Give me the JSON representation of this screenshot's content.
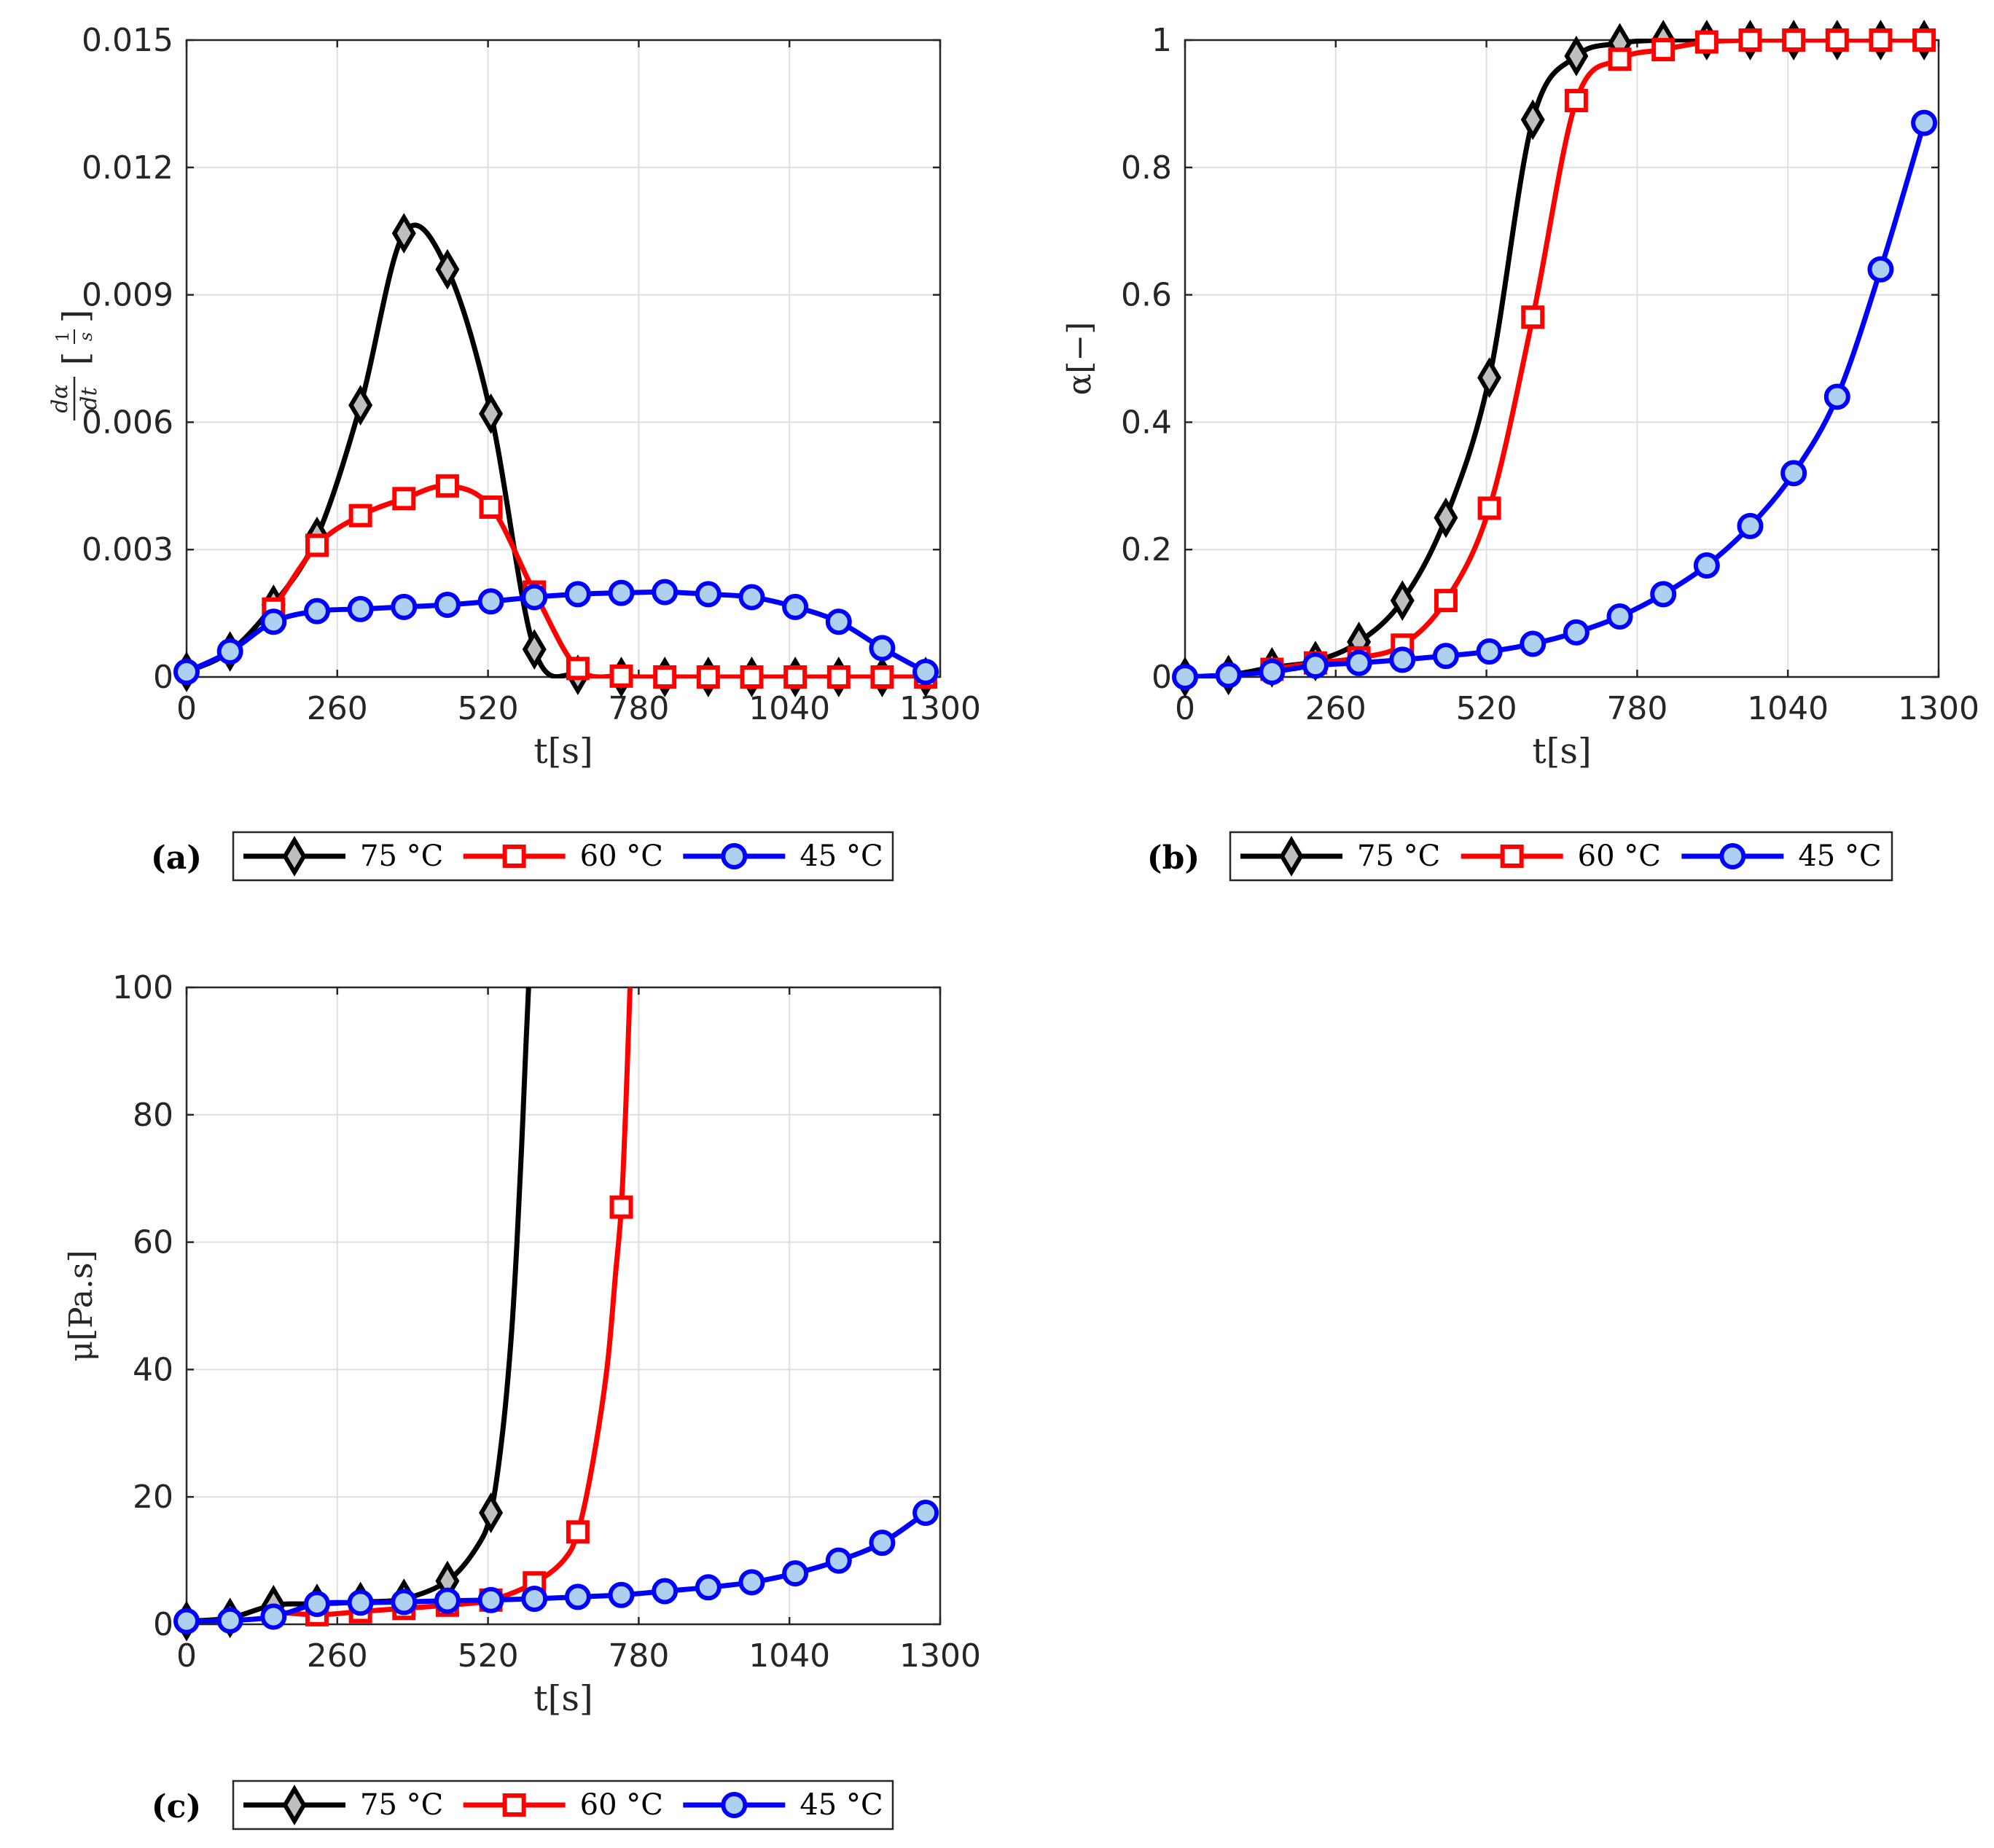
{
  "figure": {
    "legend": [
      {
        "label": "75 °C",
        "color": "#000000",
        "marker": "diamond"
      },
      {
        "label": "60 °C",
        "color": "#ff0000",
        "marker": "square"
      },
      {
        "label": "45 °C",
        "color": "#0000ff",
        "marker": "circle"
      }
    ],
    "marker_fill": "#bebebe",
    "marker_fill_circle": "#aed0f0"
  },
  "chart_data": [
    {
      "id": "a",
      "type": "line",
      "tag": "(a)",
      "xlabel": "t[s]",
      "ylabel": "dα/dt [1/s]",
      "ylabel_parts": {
        "num": "dα",
        "den": "dt",
        "bracket_num": "1",
        "bracket_den": "s"
      },
      "xlim": [
        0,
        1300
      ],
      "ylim": [
        0,
        0.015
      ],
      "xticks": [
        0,
        260,
        520,
        780,
        1040,
        1300
      ],
      "xtick_labels": [
        "0",
        "260",
        "520",
        "780",
        "1040",
        "1300"
      ],
      "yticks": [
        0,
        0.003,
        0.006,
        0.009,
        0.012,
        0.015
      ],
      "ytick_labels": [
        "0",
        "0.003",
        "0.006",
        "0.009",
        "0.012",
        "0.015"
      ],
      "series": [
        {
          "name": "75 °C",
          "x": [
            0,
            75,
            150,
            225,
            300,
            375,
            450,
            525,
            600,
            675,
            750,
            825,
            900,
            975,
            1050,
            1125,
            1200,
            1275
          ],
          "y": [
            0.00012,
            0.0006,
            0.0017,
            0.0033,
            0.0064,
            0.01045,
            0.0096,
            0.0062,
            0.00065,
            5e-05,
            0,
            0,
            0,
            0,
            0,
            0,
            0,
            0
          ]
        },
        {
          "name": "60 °C",
          "x": [
            150,
            225,
            300,
            375,
            450,
            525,
            600,
            675,
            750,
            825,
            900,
            975,
            1050,
            1125,
            1200,
            1275
          ],
          "y": [
            0.0016,
            0.0031,
            0.0038,
            0.0042,
            0.0045,
            0.004,
            0.002,
            0.0002,
            2e-05,
            0,
            0,
            0,
            0,
            0,
            0,
            0
          ]
        },
        {
          "name": "45 °C",
          "x": [
            0,
            75,
            150,
            225,
            300,
            375,
            450,
            525,
            600,
            675,
            750,
            825,
            900,
            975,
            1050,
            1125,
            1200,
            1275
          ],
          "y": [
            0.00012,
            0.0006,
            0.0013,
            0.00155,
            0.0016,
            0.00165,
            0.0017,
            0.00178,
            0.00188,
            0.00195,
            0.00198,
            0.002,
            0.00195,
            0.00188,
            0.00165,
            0.0013,
            0.00068,
            0.00012
          ]
        }
      ]
    },
    {
      "id": "b",
      "type": "line",
      "tag": "(b)",
      "xlabel": "t[s]",
      "ylabel": "α[−]",
      "xlim": [
        0,
        1300
      ],
      "ylim": [
        0,
        1
      ],
      "xticks": [
        0,
        260,
        520,
        780,
        1040,
        1300
      ],
      "xtick_labels": [
        "0",
        "260",
        "520",
        "780",
        "1040",
        "1300"
      ],
      "yticks": [
        0,
        0.2,
        0.4,
        0.6,
        0.8,
        1
      ],
      "ytick_labels": [
        "0",
        "0.2",
        "0.4",
        "0.6",
        "0.8",
        "1"
      ],
      "series": [
        {
          "name": "75 °C",
          "x": [
            0,
            75,
            150,
            225,
            300,
            375,
            450,
            525,
            600,
            675,
            750,
            825,
            900,
            975,
            1050,
            1125,
            1200,
            1275
          ],
          "y": [
            0,
            0.003,
            0.015,
            0.025,
            0.055,
            0.12,
            0.25,
            0.47,
            0.875,
            0.975,
            0.995,
            1,
            1,
            1,
            1,
            1,
            1,
            1
          ]
        },
        {
          "name": "60 °C",
          "x": [
            150,
            225,
            300,
            375,
            450,
            525,
            600,
            675,
            750,
            825,
            900,
            975,
            1050,
            1125,
            1200,
            1275
          ],
          "y": [
            0.012,
            0.022,
            0.03,
            0.05,
            0.12,
            0.265,
            0.565,
            0.905,
            0.97,
            0.985,
            0.997,
            1,
            1,
            1,
            1,
            1
          ]
        },
        {
          "name": "45 °C",
          "x": [
            0,
            75,
            150,
            225,
            300,
            375,
            450,
            525,
            600,
            675,
            750,
            825,
            900,
            975,
            1050,
            1125,
            1200,
            1275
          ],
          "y": [
            0,
            0.003,
            0.008,
            0.018,
            0.022,
            0.027,
            0.033,
            0.04,
            0.052,
            0.07,
            0.095,
            0.13,
            0.175,
            0.237,
            0.32,
            0.44,
            0.64,
            0.87
          ]
        }
      ]
    },
    {
      "id": "c",
      "type": "line",
      "tag": "(c)",
      "xlabel": "t[s]",
      "ylabel": "μ[Pa.s]",
      "xlim": [
        0,
        1300
      ],
      "ylim": [
        0,
        100
      ],
      "xticks": [
        0,
        260,
        520,
        780,
        1040,
        1300
      ],
      "xtick_labels": [
        "0",
        "260",
        "520",
        "780",
        "1040",
        "1300"
      ],
      "yticks": [
        0,
        20,
        40,
        60,
        80,
        100
      ],
      "ytick_labels": [
        "0",
        "20",
        "40",
        "60",
        "80",
        "100"
      ],
      "series": [
        {
          "name": "75 °C",
          "x": [
            0,
            75,
            150,
            225,
            300,
            375,
            450,
            525
          ],
          "y": [
            0.5,
            1,
            3,
            3.2,
            3.5,
            4,
            6.8,
            17.5
          ],
          "curve_x": [
            0,
            75,
            150,
            225,
            300,
            375,
            450,
            500,
            525,
            545,
            560,
            570,
            578,
            585,
            590
          ],
          "curve_y": [
            0.5,
            1,
            3,
            3.2,
            3.5,
            4,
            6.8,
            12,
            17.5,
            30,
            45,
            60,
            75,
            90,
            100
          ]
        },
        {
          "name": "60 °C",
          "x": [
            225,
            300,
            375,
            450,
            525,
            600,
            675,
            750
          ],
          "y": [
            1.5,
            2,
            2.5,
            3,
            3.8,
            6.5,
            14.5,
            65.5
          ],
          "curve_x": [
            150,
            225,
            300,
            375,
            450,
            525,
            600,
            650,
            675,
            700,
            725,
            740,
            750,
            758,
            765
          ],
          "curve_y": [
            2,
            1.5,
            2,
            2.5,
            3,
            3.8,
            6.5,
            10,
            14.5,
            25,
            40,
            55,
            65.5,
            82,
            100
          ]
        },
        {
          "name": "45 °C",
          "x": [
            0,
            75,
            150,
            225,
            300,
            375,
            450,
            525,
            600,
            675,
            750,
            825,
            900,
            975,
            1050,
            1125,
            1200,
            1275
          ],
          "y": [
            0.5,
            0.6,
            1.2,
            3.2,
            3.4,
            3.5,
            3.7,
            3.8,
            4,
            4.3,
            4.6,
            5.2,
            5.8,
            6.6,
            8,
            10,
            12.8,
            17.5
          ]
        }
      ]
    }
  ]
}
